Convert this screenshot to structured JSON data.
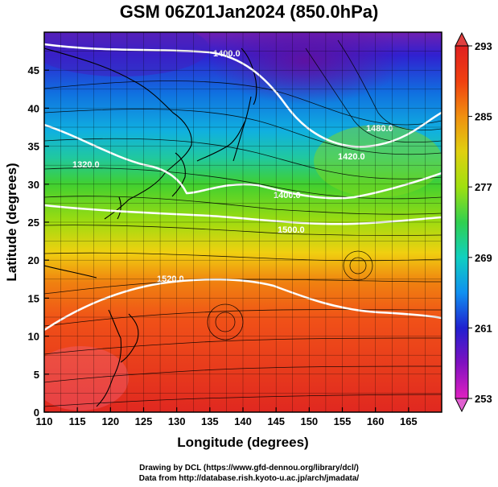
{
  "title": "GSM 06Z01Jan2024 (850.0hPa)",
  "xaxis": {
    "label": "Longitude (degrees)",
    "range": [
      110,
      170
    ],
    "ticks": [
      110,
      115,
      120,
      125,
      130,
      135,
      140,
      145,
      150,
      155,
      160,
      165
    ]
  },
  "yaxis": {
    "label": "Latitude  (degrees)",
    "range": [
      0,
      50
    ],
    "ticks": [
      0,
      5,
      10,
      15,
      20,
      25,
      30,
      35,
      40,
      45
    ]
  },
  "colorbar": {
    "ticks": [
      253,
      261,
      269,
      277,
      285,
      293
    ],
    "range": [
      253,
      293
    ],
    "colors": [
      "#e020c0",
      "#8010c0",
      "#2020d0",
      "#1090f0",
      "#10d0c0",
      "#30d050",
      "#a0e010",
      "#e0d010",
      "#f09010",
      "#f04010",
      "#e02020"
    ]
  },
  "contours": [
    {
      "label": "1400.0"
    },
    {
      "label": "1320.0"
    },
    {
      "label": "1480.0"
    },
    {
      "label": "1420.0"
    },
    {
      "label": "1400.0"
    },
    {
      "label": "1500.0"
    },
    {
      "label": "1520.0"
    }
  ],
  "credits": {
    "line1": "Drawing by DCL (https://www.gfd-dennou.org/library/dcl/)",
    "line2": "Data from http://database.rish.kyoto-u.ac.jp/arch/jmadata/"
  }
}
